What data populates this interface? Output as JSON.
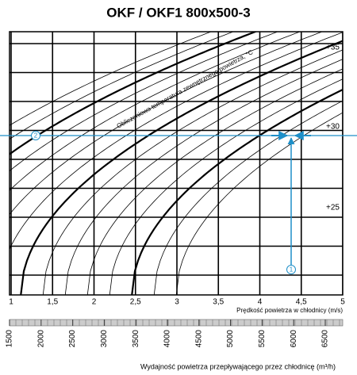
{
  "chart_data": {
    "type": "nomogram",
    "title": "OKF / OKF1 800x500-3",
    "xlabel": "Prędkość powietrza w chłodnicy (m/s)",
    "xlim": [
      1,
      5
    ],
    "xticks": [
      1,
      {
        "value": 1.5,
        "label": "1,5"
      },
      2,
      {
        "value": 2.5,
        "label": "2,5"
      },
      3,
      {
        "value": 3.5,
        "label": "3,5"
      },
      4,
      {
        "value": 4.5,
        "label": "4,5"
      },
      5
    ],
    "x2label": "Wydajność powietrza przepływającego przez chłodnicę (m³/h)",
    "x2lim": [
      1500,
      6500
    ],
    "x2ticks": [
      1500,
      2000,
      2500,
      3000,
      3500,
      4000,
      4500,
      5000,
      5500,
      6000,
      6500
    ],
    "curve_title": "Obliczeniowa temperatura zewnętrznego powietrza, °C",
    "curve_labels": [
      "+35",
      "+30",
      "+25"
    ],
    "markers": [
      "1",
      "2"
    ],
    "marker_color": "#1e8fc8"
  }
}
